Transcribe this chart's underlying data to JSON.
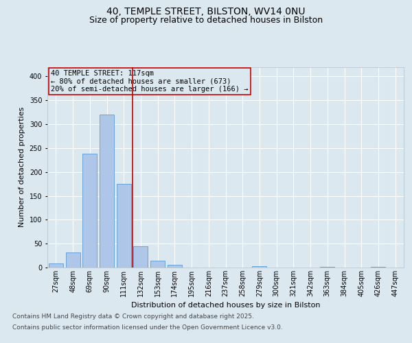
{
  "title_line1": "40, TEMPLE STREET, BILSTON, WV14 0NU",
  "title_line2": "Size of property relative to detached houses in Bilston",
  "xlabel": "Distribution of detached houses by size in Bilston",
  "ylabel": "Number of detached properties",
  "categories": [
    "27sqm",
    "48sqm",
    "69sqm",
    "90sqm",
    "111sqm",
    "132sqm",
    "153sqm",
    "174sqm",
    "195sqm",
    "216sqm",
    "237sqm",
    "258sqm",
    "279sqm",
    "300sqm",
    "321sqm",
    "342sqm",
    "363sqm",
    "384sqm",
    "405sqm",
    "426sqm",
    "447sqm"
  ],
  "values": [
    8,
    31,
    238,
    320,
    175,
    45,
    15,
    6,
    0,
    0,
    0,
    0,
    3,
    0,
    0,
    0,
    1,
    0,
    0,
    1,
    0
  ],
  "bar_color": "#aec6e8",
  "bar_edgecolor": "#5b9bd5",
  "vline_x_index": 4,
  "vline_color": "#cc0000",
  "annotation_text": "40 TEMPLE STREET: 117sqm\n← 80% of detached houses are smaller (673)\n20% of semi-detached houses are larger (166) →",
  "annotation_box_edgecolor": "#cc0000",
  "background_color": "#dce8f0",
  "ylim": [
    0,
    420
  ],
  "yticks": [
    0,
    50,
    100,
    150,
    200,
    250,
    300,
    350,
    400
  ],
  "footer_line1": "Contains HM Land Registry data © Crown copyright and database right 2025.",
  "footer_line2": "Contains public sector information licensed under the Open Government Licence v3.0.",
  "grid_color": "#ffffff",
  "title_fontsize": 10,
  "subtitle_fontsize": 9,
  "axis_label_fontsize": 8,
  "tick_fontsize": 7,
  "annotation_fontsize": 7.5,
  "footer_fontsize": 6.5
}
